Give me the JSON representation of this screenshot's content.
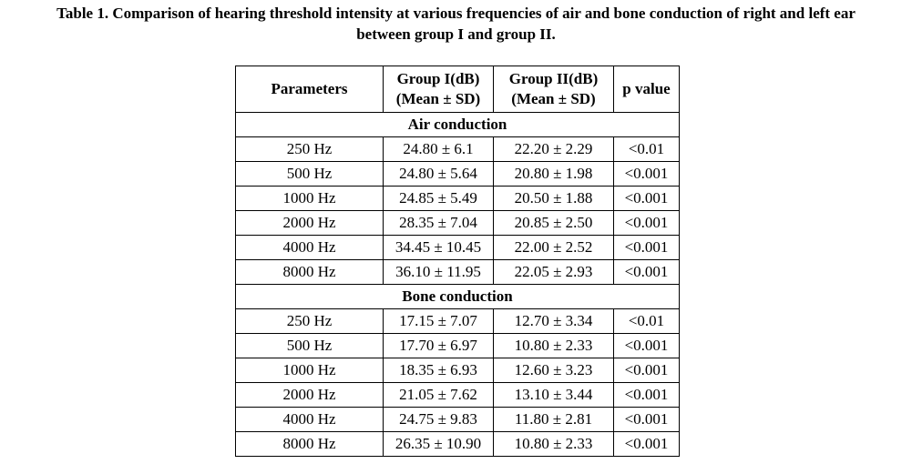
{
  "caption": {
    "line1": "Table 1. Comparison of hearing threshold intensity at various frequencies of air and bone conduction of right and left ear",
    "line2": "between group I and group II."
  },
  "table": {
    "headers": {
      "parameters": "Parameters",
      "group1_line1": "Group I(dB)",
      "group1_line2": "(Mean ± SD)",
      "group2_line1": "Group II(dB)",
      "group2_line2": "(Mean ± SD)",
      "p_value": "p value"
    },
    "sections": [
      {
        "title": "Air conduction",
        "rows": [
          {
            "param": "250 Hz",
            "g1": "24.80 ± 6.1",
            "g2": "22.20 ± 2.29",
            "p": "<0.01"
          },
          {
            "param": "500 Hz",
            "g1": "24.80 ± 5.64",
            "g2": "20.80 ± 1.98",
            "p": "<0.001"
          },
          {
            "param": "1000 Hz",
            "g1": "24.85 ± 5.49",
            "g2": "20.50 ± 1.88",
            "p": "<0.001"
          },
          {
            "param": "2000 Hz",
            "g1": "28.35 ± 7.04",
            "g2": "20.85 ± 2.50",
            "p": "<0.001"
          },
          {
            "param": "4000 Hz",
            "g1": "34.45 ± 10.45",
            "g2": "22.00 ± 2.52",
            "p": "<0.001"
          },
          {
            "param": "8000 Hz",
            "g1": "36.10 ± 11.95",
            "g2": "22.05 ± 2.93",
            "p": "<0.001"
          }
        ]
      },
      {
        "title": "Bone conduction",
        "rows": [
          {
            "param": "250 Hz",
            "g1": "17.15 ± 7.07",
            "g2": "12.70 ± 3.34",
            "p": "<0.01"
          },
          {
            "param": "500 Hz",
            "g1": "17.70 ± 6.97",
            "g2": "10.80 ± 2.33",
            "p": "<0.001"
          },
          {
            "param": "1000 Hz",
            "g1": "18.35 ± 6.93",
            "g2": "12.60 ± 3.23",
            "p": "<0.001"
          },
          {
            "param": "2000 Hz",
            "g1": "21.05 ± 7.62",
            "g2": "13.10 ± 3.44",
            "p": "<0.001"
          },
          {
            "param": "4000 Hz",
            "g1": "24.75 ± 9.83",
            "g2": "11.80 ± 2.81",
            "p": "<0.001"
          },
          {
            "param": "8000 Hz",
            "g1": "26.35 ± 10.90",
            "g2": "10.80 ± 2.33",
            "p": "<0.001"
          }
        ]
      }
    ]
  }
}
